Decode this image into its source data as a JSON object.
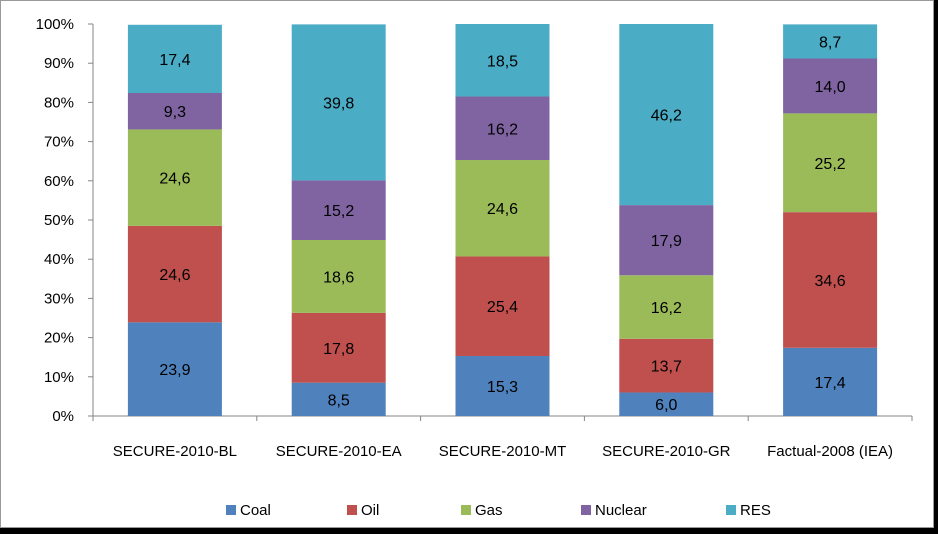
{
  "chart_data": {
    "type": "bar",
    "stacked": true,
    "percent": true,
    "categories": [
      "SECURE-2010-BL",
      "SECURE-2010-EA",
      "SECURE-2010-MT",
      "SECURE-2010-GR",
      "Factual-2008 (IEA)"
    ],
    "series": [
      {
        "name": "Coal",
        "color": "#4F81BD",
        "values": [
          23.9,
          8.5,
          15.3,
          6.0,
          17.4
        ],
        "labels": [
          "23,9",
          "8,5",
          "15,3",
          "6,0",
          "17,4"
        ]
      },
      {
        "name": "Oil",
        "color": "#C0504D",
        "values": [
          24.6,
          17.8,
          25.4,
          13.7,
          34.6
        ],
        "labels": [
          "24,6",
          "17,8",
          "25,4",
          "13,7",
          "34,6"
        ]
      },
      {
        "name": "Gas",
        "color": "#9BBB59",
        "values": [
          24.6,
          18.6,
          24.6,
          16.2,
          25.2
        ],
        "labels": [
          "24,6",
          "18,6",
          "24,6",
          "16,2",
          "25,2"
        ]
      },
      {
        "name": "Nuclear",
        "color": "#8064A2",
        "values": [
          9.3,
          15.2,
          16.2,
          17.9,
          14.0
        ],
        "labels": [
          "9,3",
          "15,2",
          "16,2",
          "17,9",
          "14,0"
        ]
      },
      {
        "name": "RES",
        "color": "#4BACC6",
        "values": [
          17.4,
          39.8,
          18.5,
          46.2,
          8.7
        ],
        "labels": [
          "17,4",
          "39,8",
          "18,5",
          "46,2",
          "8,7"
        ]
      }
    ],
    "yticks": [
      "0%",
      "10%",
      "20%",
      "30%",
      "40%",
      "50%",
      "60%",
      "70%",
      "80%",
      "90%",
      "100%"
    ],
    "ylim": [
      0,
      100
    ],
    "grid": false,
    "legend_position": "bottom"
  }
}
